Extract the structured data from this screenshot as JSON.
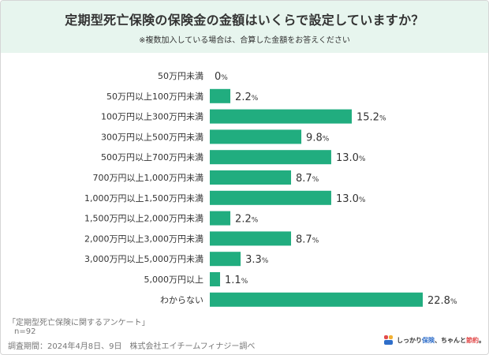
{
  "header": {
    "title": "定期型死亡保険の保険金の金額はいくらで設定していますか？",
    "subtitle": "※複数加入している場合は、合算した金額をお答えください"
  },
  "chart_data": {
    "type": "bar",
    "orientation": "horizontal",
    "categories": [
      "50万円未満",
      "50万円以上100万円未満",
      "100万円以上300万円未満",
      "300万円以上500万円未満",
      "500万円以上700万円未満",
      "700万円以上1,000万円未満",
      "1,000万円以上1,500万円未満",
      "1,500万円以上2,000万円未満",
      "2,000万円以上3,000万円未満",
      "3,000万円以上5,000万円未満",
      "5,000万円以上",
      "わからない"
    ],
    "values": [
      0,
      2.2,
      15.2,
      9.8,
      13.0,
      8.7,
      13.0,
      2.2,
      8.7,
      3.3,
      1.1,
      22.8
    ],
    "value_labels": [
      "0",
      "2.2",
      "15.2",
      "9.8",
      "13.0",
      "8.7",
      "13.0",
      "2.2",
      "8.7",
      "3.3",
      "1.1",
      "22.8"
    ],
    "value_suffix": "%",
    "title": "定期型死亡保険の保険金の金額はいくらで設定していますか？",
    "xlabel": "",
    "ylabel": "",
    "xlim": [
      0,
      25
    ],
    "grid": false,
    "bar_color": "#21ad7f"
  },
  "footer": {
    "survey": "「定期型死亡保険に関するアンケート」",
    "n": "n=92",
    "period": "調査期間：2024年4月8日、9日　株式会社エイチームフィナジー調べ"
  },
  "logo": {
    "part1": "しっかり",
    "part2": "保険",
    "part3": "、ちゃんと",
    "part4": "節約",
    "part5": "。",
    "icon": "brand-logo-icon"
  },
  "colors": {
    "header_bg": "#e7f5ee",
    "bar": "#21ad7f"
  }
}
